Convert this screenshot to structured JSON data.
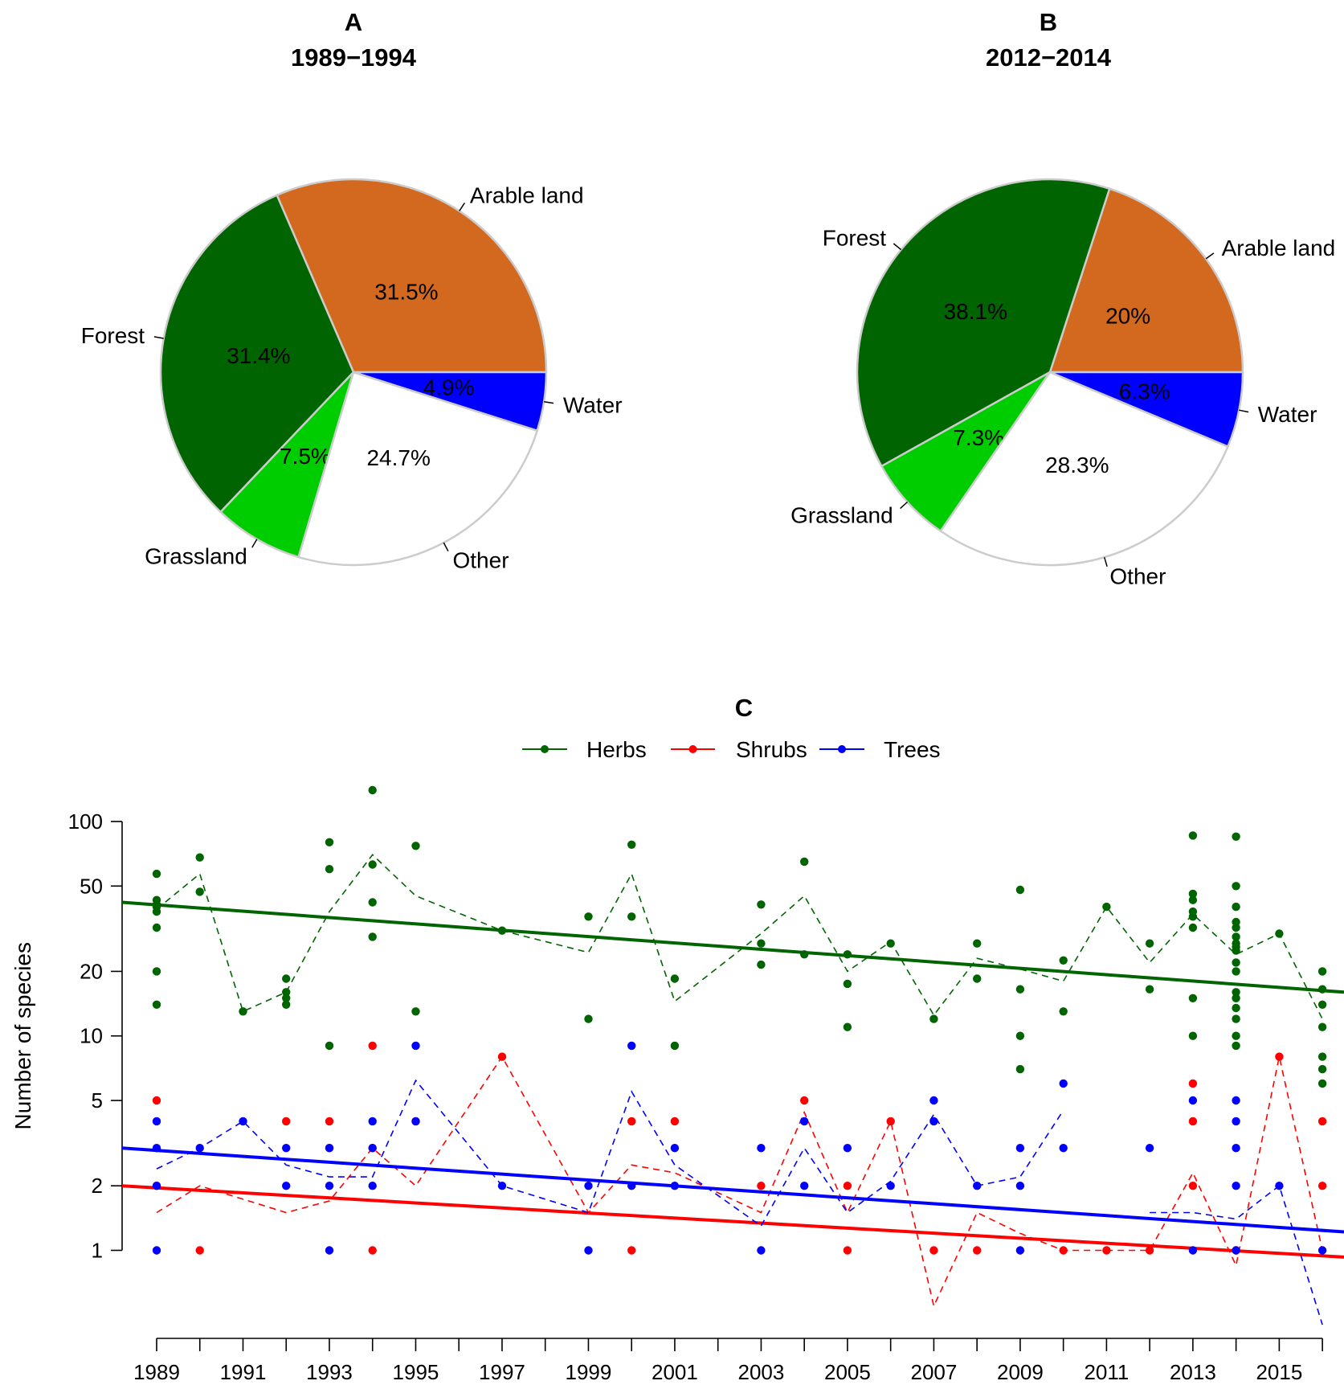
{
  "chart_data": [
    {
      "type": "pie",
      "panel": "A",
      "title": "1989−1994",
      "slices": [
        {
          "label": "Arable land",
          "value": 31.5,
          "pct_label": "31.5%",
          "color": "#D2691E"
        },
        {
          "label": "Forest",
          "value": 31.4,
          "pct_label": "31.4%",
          "color": "#006400"
        },
        {
          "label": "Grassland",
          "value": 7.5,
          "pct_label": "7.5%",
          "color": "#00CD00"
        },
        {
          "label": "Other",
          "value": 24.7,
          "pct_label": "24.7%",
          "color": "#FFFFFF"
        },
        {
          "label": "Water",
          "value": 4.9,
          "pct_label": "4.9%",
          "color": "#0000FF"
        }
      ]
    },
    {
      "type": "pie",
      "panel": "B",
      "title": "2012−2014",
      "slices": [
        {
          "label": "Arable land",
          "value": 20.0,
          "pct_label": "20%",
          "color": "#D2691E"
        },
        {
          "label": "Forest",
          "value": 38.1,
          "pct_label": "38.1%",
          "color": "#006400"
        },
        {
          "label": "Grassland",
          "value": 7.3,
          "pct_label": "7.3%",
          "color": "#00CD00"
        },
        {
          "label": "Other",
          "value": 28.3,
          "pct_label": "28.3%",
          "color": "#FFFFFF"
        },
        {
          "label": "Water",
          "value": 6.3,
          "pct_label": "6.3%",
          "color": "#0000FF"
        }
      ]
    },
    {
      "type": "scatter",
      "panel": "C",
      "title": "",
      "xlabel": "",
      "ylabel": "Number of species",
      "y_scale": "log",
      "xlim": [
        1988.2,
        2016.5
      ],
      "ylim": [
        0.45,
        150
      ],
      "x_ticks": [
        1989,
        1990,
        1991,
        1992,
        1993,
        1994,
        1995,
        1996,
        1997,
        1998,
        1999,
        2000,
        2001,
        2002,
        2003,
        2004,
        2005,
        2006,
        2007,
        2008,
        2009,
        2010,
        2011,
        2012,
        2013,
        2014,
        2015,
        2016
      ],
      "x_tick_labels": [
        "1989",
        "1991",
        "1993",
        "1995",
        "1997",
        "1999",
        "2001",
        "2003",
        "2005",
        "2007",
        "2009",
        "2011",
        "2013",
        "2015"
      ],
      "y_ticks": [
        1,
        2,
        5,
        10,
        20,
        50,
        100
      ],
      "y_tick_labels": [
        "1",
        "2",
        "5",
        "10",
        "20",
        "50",
        "100"
      ],
      "legend": [
        "Herbs",
        "Shrubs",
        "Trees"
      ],
      "legend_position": "top-center",
      "series": [
        {
          "name": "Herbs",
          "color": "#006400",
          "points": [
            [
              1989,
              57
            ],
            [
              1989,
              43
            ],
            [
              1989,
              41
            ],
            [
              1989,
              40
            ],
            [
              1989,
              38
            ],
            [
              1989,
              32
            ],
            [
              1989,
              20
            ],
            [
              1989,
              14
            ],
            [
              1990,
              68
            ],
            [
              1990,
              47
            ],
            [
              1991,
              13
            ],
            [
              1992,
              18.5
            ],
            [
              1992,
              16
            ],
            [
              1992,
              15
            ],
            [
              1992,
              14
            ],
            [
              1993,
              80
            ],
            [
              1993,
              60
            ],
            [
              1993,
              9
            ],
            [
              1994,
              140
            ],
            [
              1994,
              63
            ],
            [
              1994,
              42
            ],
            [
              1994,
              29
            ],
            [
              1995,
              77
            ],
            [
              1995,
              13
            ],
            [
              1997,
              31
            ],
            [
              1999,
              36
            ],
            [
              1999,
              12
            ],
            [
              2000,
              78
            ],
            [
              2000,
              36
            ],
            [
              2001,
              18.5
            ],
            [
              2001,
              9
            ],
            [
              2003,
              41
            ],
            [
              2003,
              27
            ],
            [
              2003,
              21.5
            ],
            [
              2004,
              65
            ],
            [
              2004,
              24
            ],
            [
              2005,
              24
            ],
            [
              2005,
              17.5
            ],
            [
              2005,
              11
            ],
            [
              2006,
              27
            ],
            [
              2007,
              12
            ],
            [
              2008,
              27
            ],
            [
              2008,
              18.5
            ],
            [
              2009,
              48
            ],
            [
              2009,
              16.5
            ],
            [
              2009,
              10
            ],
            [
              2009,
              7
            ],
            [
              2010,
              22.5
            ],
            [
              2010,
              13
            ],
            [
              2011,
              40
            ],
            [
              2012,
              27
            ],
            [
              2012,
              16.5
            ],
            [
              2013,
              86
            ],
            [
              2013,
              46
            ],
            [
              2013,
              43
            ],
            [
              2013,
              38
            ],
            [
              2013,
              36
            ],
            [
              2013,
              32
            ],
            [
              2013,
              15
            ],
            [
              2013,
              10
            ],
            [
              2014,
              85
            ],
            [
              2014,
              50
            ],
            [
              2014,
              40
            ],
            [
              2014,
              34
            ],
            [
              2014,
              32
            ],
            [
              2014,
              29
            ],
            [
              2014,
              27
            ],
            [
              2014,
              26
            ],
            [
              2014,
              25
            ],
            [
              2014,
              22
            ],
            [
              2014,
              20
            ],
            [
              2014,
              16
            ],
            [
              2014,
              15
            ],
            [
              2014,
              13.5
            ],
            [
              2014,
              12
            ],
            [
              2014,
              10
            ],
            [
              2014,
              9
            ],
            [
              2015,
              30
            ],
            [
              2016,
              20
            ],
            [
              2016,
              16.5
            ],
            [
              2016,
              14
            ],
            [
              2016,
              11
            ],
            [
              2016,
              8
            ],
            [
              2016,
              7
            ],
            [
              2016,
              6
            ]
          ],
          "mean_line": [
            [
              1989,
              39
            ],
            [
              1990,
              57
            ],
            [
              1991,
              13
            ],
            [
              1992,
              16
            ],
            [
              1993,
              38
            ],
            [
              1994,
              70
            ],
            [
              1995,
              45
            ],
            [
              1997,
              31
            ],
            [
              1999,
              24.5
            ],
            [
              2000,
              57
            ],
            [
              2001,
              14.5
            ],
            [
              2003,
              30
            ],
            [
              2004,
              45
            ],
            [
              2005,
              20
            ],
            [
              2006,
              27.5
            ],
            [
              2007,
              12.5
            ],
            [
              2008,
              23
            ],
            [
              2009,
              20.5
            ],
            [
              2010,
              18
            ],
            [
              2011,
              40
            ],
            [
              2012,
              22
            ],
            [
              2013,
              37
            ],
            [
              2014,
              24
            ],
            [
              2015,
              30
            ],
            [
              2016,
              12
            ]
          ],
          "trend_line": [
            [
              1988.2,
              42
            ],
            [
              2016.5,
              16
            ]
          ]
        },
        {
          "name": "Shrubs",
          "color": "#FF0000",
          "points": [
            [
              1989,
              5
            ],
            [
              1989,
              2
            ],
            [
              1990,
              1
            ],
            [
              1992,
              4
            ],
            [
              1993,
              4
            ],
            [
              1993,
              3
            ],
            [
              1994,
              9
            ],
            [
              1994,
              3
            ],
            [
              1994,
              1
            ],
            [
              1995,
              4
            ],
            [
              1997,
              8
            ],
            [
              2000,
              4
            ],
            [
              2000,
              1
            ],
            [
              2001,
              4
            ],
            [
              2003,
              2
            ],
            [
              2004,
              5
            ],
            [
              2005,
              2
            ],
            [
              2005,
              1
            ],
            [
              2006,
              4
            ],
            [
              2007,
              1
            ],
            [
              2008,
              1
            ],
            [
              2010,
              1
            ],
            [
              2011,
              1
            ],
            [
              2012,
              1
            ],
            [
              2013,
              6
            ],
            [
              2013,
              4
            ],
            [
              2013,
              2
            ],
            [
              2014,
              1
            ],
            [
              2015,
              8
            ],
            [
              2016,
              4
            ],
            [
              2016,
              2
            ]
          ],
          "mean_line": [
            [
              1989,
              1.5
            ],
            [
              1990,
              2
            ],
            [
              1992,
              1.5
            ],
            [
              1993,
              1.7
            ],
            [
              1994,
              3
            ],
            [
              1995,
              2
            ],
            [
              1997,
              8
            ],
            [
              1999,
              1.5
            ],
            [
              2000,
              2.5
            ],
            [
              2001,
              2.3
            ],
            [
              2003,
              1.5
            ],
            [
              2004,
              4.4
            ],
            [
              2005,
              1.5
            ],
            [
              2006,
              4
            ],
            [
              2007,
              0.55
            ],
            [
              2008,
              1.5
            ],
            [
              2009,
              1.2
            ],
            [
              2010,
              1
            ],
            [
              2011,
              1
            ],
            [
              2012,
              1
            ],
            [
              2013,
              2.3
            ],
            [
              2014,
              0.85
            ],
            [
              2015,
              8
            ],
            [
              2016,
              1
            ]
          ],
          "trend_line": [
            [
              1988.2,
              2.0
            ],
            [
              2016.5,
              0.93
            ]
          ]
        },
        {
          "name": "Trees",
          "color": "#0000FF",
          "points": [
            [
              1989,
              4
            ],
            [
              1989,
              3
            ],
            [
              1989,
              2
            ],
            [
              1989,
              1
            ],
            [
              1990,
              3
            ],
            [
              1991,
              4
            ],
            [
              1992,
              3
            ],
            [
              1992,
              2
            ],
            [
              1993,
              3
            ],
            [
              1993,
              2
            ],
            [
              1993,
              1
            ],
            [
              1994,
              4
            ],
            [
              1994,
              3
            ],
            [
              1994,
              2
            ],
            [
              1995,
              9
            ],
            [
              1995,
              4
            ],
            [
              1997,
              2
            ],
            [
              1999,
              2
            ],
            [
              1999,
              1
            ],
            [
              2000,
              9
            ],
            [
              2000,
              2
            ],
            [
              2001,
              3
            ],
            [
              2001,
              2
            ],
            [
              2003,
              3
            ],
            [
              2003,
              1
            ],
            [
              2004,
              4
            ],
            [
              2004,
              2
            ],
            [
              2005,
              3
            ],
            [
              2006,
              2
            ],
            [
              2007,
              5
            ],
            [
              2007,
              4
            ],
            [
              2008,
              2
            ],
            [
              2009,
              3
            ],
            [
              2009,
              2
            ],
            [
              2009,
              1
            ],
            [
              2010,
              6
            ],
            [
              2010,
              3
            ],
            [
              2012,
              3
            ],
            [
              2013,
              5
            ],
            [
              2013,
              1
            ],
            [
              2014,
              5
            ],
            [
              2014,
              4
            ],
            [
              2014,
              3
            ],
            [
              2014,
              2
            ],
            [
              2014,
              1
            ],
            [
              2015,
              2
            ],
            [
              2016,
              1
            ]
          ],
          "mean_line": [
            [
              1989,
              2.4
            ],
            [
              1990,
              3
            ],
            [
              1991,
              4
            ],
            [
              1992,
              2.5
            ],
            [
              1993,
              2.2
            ],
            [
              1994,
              2.2
            ],
            [
              1995,
              6.2
            ],
            [
              1997,
              2
            ],
            [
              1999,
              1.5
            ],
            [
              2000,
              5.5
            ],
            [
              2001,
              2.5
            ],
            [
              2003,
              1.3
            ],
            [
              2004,
              3
            ],
            [
              2005,
              1.5
            ],
            [
              2006,
              2.1
            ],
            [
              2007,
              4.3
            ],
            [
              2008,
              2
            ],
            [
              2009,
              2.2
            ],
            [
              2010,
              4.5
            ]
          ],
          "mean_line_2": [
            [
              2012,
              1.5
            ],
            [
              2013,
              1.5
            ],
            [
              2014,
              1.4
            ],
            [
              2015,
              2
            ],
            [
              2016,
              0.45
            ]
          ],
          "trend_line": [
            [
              1988.2,
              3.0
            ],
            [
              2016.5,
              1.22
            ]
          ]
        }
      ]
    }
  ],
  "panel_labels": {
    "c": "C"
  }
}
